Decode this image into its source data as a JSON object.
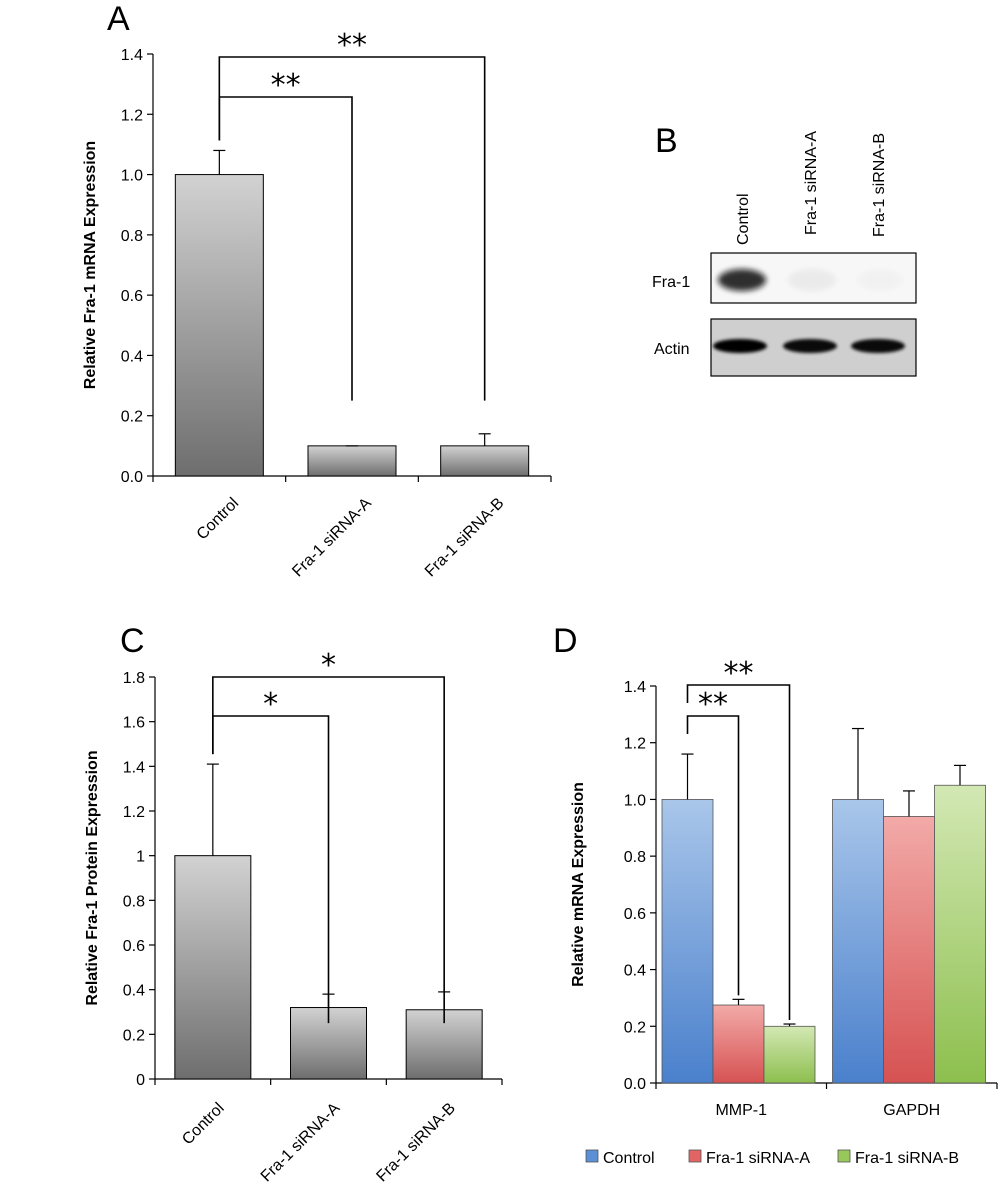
{
  "panels": {
    "a": "A",
    "b": "B",
    "c": "C",
    "d": "D"
  },
  "western_blot": {
    "lanes": [
      "Control",
      "Fra-1 siRNA-A",
      "Fra-1 siRNA-B"
    ],
    "rows": [
      "Fra-1",
      "Actin"
    ],
    "fra1_intensity": [
      0.85,
      0.05,
      0.02
    ],
    "actin_intensity": [
      1.0,
      0.95,
      0.95
    ]
  },
  "colors": {
    "control": "#5b8fd6",
    "sirna_a": "#e26464",
    "sirna_b": "#98c75a",
    "gray_top": "#d2d2d2",
    "gray_bottom": "#6e6e6e"
  },
  "chart_data": [
    {
      "type": "bar",
      "panel": "A",
      "ylabel": "Relative Fra-1 mRNA Expression",
      "xlabel": "",
      "categories": [
        "Control",
        "Fra-1 siRNA-A",
        "Fra-1 siRNA-B"
      ],
      "values": [
        1.0,
        0.1,
        0.1
      ],
      "errors": [
        0.08,
        0.0,
        0.04
      ],
      "ylim": [
        0,
        1.4
      ],
      "yticks": [
        "0.0",
        "0.2",
        "0.4",
        "0.6",
        "0.8",
        "1.0",
        "1.2",
        "1.4"
      ],
      "significance": [
        {
          "from": 0,
          "to": 1,
          "label": "**"
        },
        {
          "from": 0,
          "to": 2,
          "label": "**"
        }
      ]
    },
    {
      "type": "bar",
      "panel": "C",
      "ylabel": "Relative Fra-1 Protein Expression",
      "xlabel": "",
      "categories": [
        "Control",
        "Fra-1 siRNA-A",
        "Fra-1 siRNA-B"
      ],
      "values": [
        1.0,
        0.32,
        0.31
      ],
      "errors": [
        0.41,
        0.06,
        0.08
      ],
      "ylim": [
        0,
        1.8
      ],
      "yticks": [
        "0",
        "0.2",
        "0.4",
        "0.6",
        "0.8",
        "1",
        "1.2",
        "1.4",
        "1.6",
        "1.8"
      ],
      "significance": [
        {
          "from": 0,
          "to": 1,
          "label": "*"
        },
        {
          "from": 0,
          "to": 2,
          "label": "*"
        }
      ]
    },
    {
      "type": "bar",
      "panel": "D",
      "ylabel": "Relative mRNA Expression",
      "xlabel": "",
      "categories": [
        "MMP-1",
        "GAPDH"
      ],
      "series": [
        {
          "name": "Control",
          "values": [
            1.0,
            1.0
          ],
          "errors": [
            0.16,
            0.25
          ]
        },
        {
          "name": "Fra-1 siRNA-A",
          "values": [
            0.275,
            0.94
          ],
          "errors": [
            0.02,
            0.09
          ]
        },
        {
          "name": "Fra-1 siRNA-B",
          "values": [
            0.2,
            1.05
          ],
          "errors": [
            0.008,
            0.07
          ]
        }
      ],
      "ylim": [
        0,
        1.4
      ],
      "yticks": [
        "0.0",
        "0.2",
        "0.4",
        "0.6",
        "0.8",
        "1.0",
        "1.2",
        "1.4"
      ],
      "legend_position": "bottom",
      "significance": [
        {
          "category": 0,
          "from": 0,
          "to": 1,
          "label": "**"
        },
        {
          "category": 0,
          "from": 0,
          "to": 2,
          "label": "**"
        }
      ]
    }
  ]
}
